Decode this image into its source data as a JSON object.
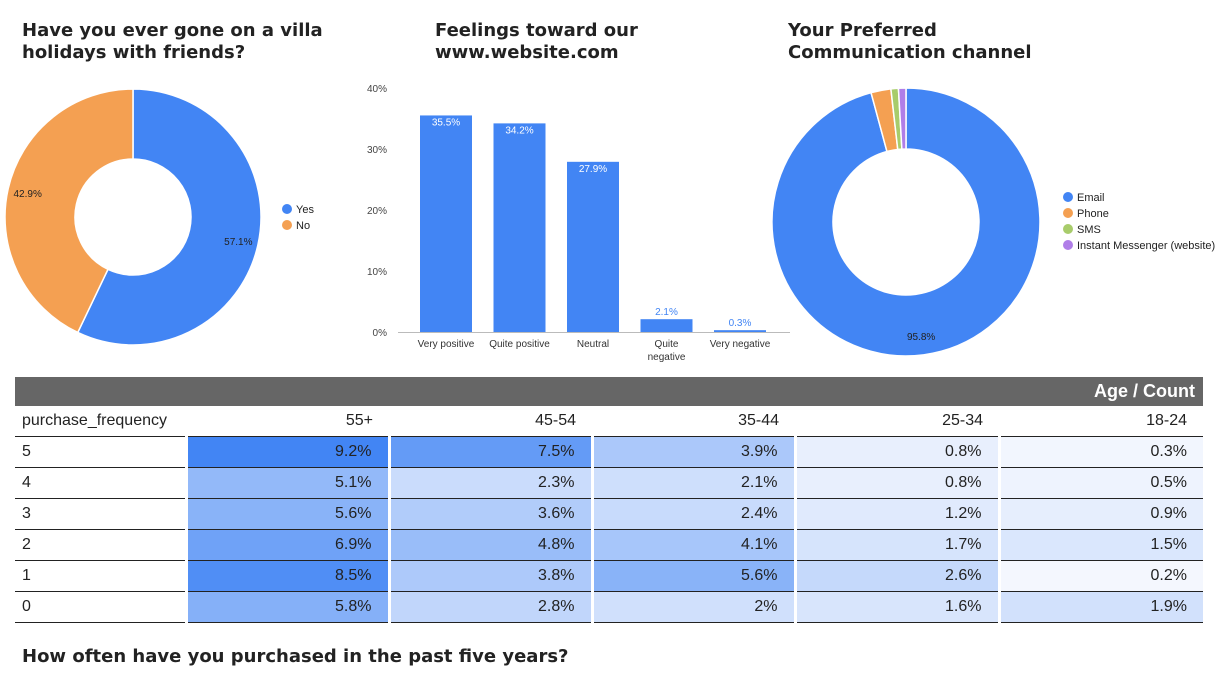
{
  "chart_data": [
    {
      "type": "pie",
      "title": "Have you ever gone on a villa\nholidays with friends?",
      "labels": [
        "Yes",
        "No"
      ],
      "values": [
        57.1,
        42.9
      ],
      "value_labels": [
        "57.1%",
        "42.9%"
      ],
      "colors": [
        "#4285f4",
        "#f4a052"
      ],
      "donut": true,
      "legend": "right"
    },
    {
      "type": "bar",
      "title": "Feelings toward our\nwww.website.com",
      "categories": [
        "Very positive",
        "Quite positive",
        "Neutral",
        "Quite\nnegative",
        "Very negative"
      ],
      "values": [
        35.5,
        34.2,
        27.9,
        2.1,
        0.3
      ],
      "value_labels": [
        "35.5%",
        "34.2%",
        "27.9%",
        "2.1%",
        "0.3%"
      ],
      "ylim": [
        0,
        40
      ],
      "yticks": [
        "0%",
        "10%",
        "20%",
        "30%",
        "40%"
      ],
      "color": "#4285f4",
      "grid": false
    },
    {
      "type": "pie",
      "title": "Your Preferred\nCommunication channel",
      "labels": [
        "Email",
        "Phone",
        "SMS",
        "Instant Messenger (website)"
      ],
      "values": [
        95.8,
        2.4,
        0.9,
        0.9
      ],
      "value_labels": [
        "95.8%",
        "",
        "",
        ""
      ],
      "colors": [
        "#4285f4",
        "#f4a052",
        "#a8cc6b",
        "#b07ee8"
      ],
      "donut": true,
      "legend": "right"
    },
    {
      "type": "heatmap",
      "title": "How often have you purchased in the past five years?",
      "header_label": "Age / Count",
      "row_header": "purchase_frequency",
      "columns": [
        "55+",
        "45-54",
        "35-44",
        "25-34",
        "18-24"
      ],
      "rows": [
        {
          "label": "5",
          "values": [
            "9.2%",
            "7.5%",
            "3.9%",
            "0.8%",
            "0.3%"
          ]
        },
        {
          "label": "4",
          "values": [
            "5.1%",
            "2.3%",
            "2.1%",
            "0.8%",
            "0.5%"
          ]
        },
        {
          "label": "3",
          "values": [
            "5.6%",
            "3.6%",
            "2.4%",
            "1.2%",
            "0.9%"
          ]
        },
        {
          "label": "2",
          "values": [
            "6.9%",
            "4.8%",
            "4.1%",
            "1.7%",
            "1.5%"
          ]
        },
        {
          "label": "1",
          "values": [
            "8.5%",
            "3.8%",
            "5.6%",
            "2.6%",
            "0.2%"
          ]
        },
        {
          "label": "0",
          "values": [
            "5.8%",
            "2.8%",
            "2%",
            "1.6%",
            "1.9%"
          ]
        }
      ],
      "scale_colors": [
        "#f4f7fe",
        "#4285f4"
      ]
    }
  ]
}
